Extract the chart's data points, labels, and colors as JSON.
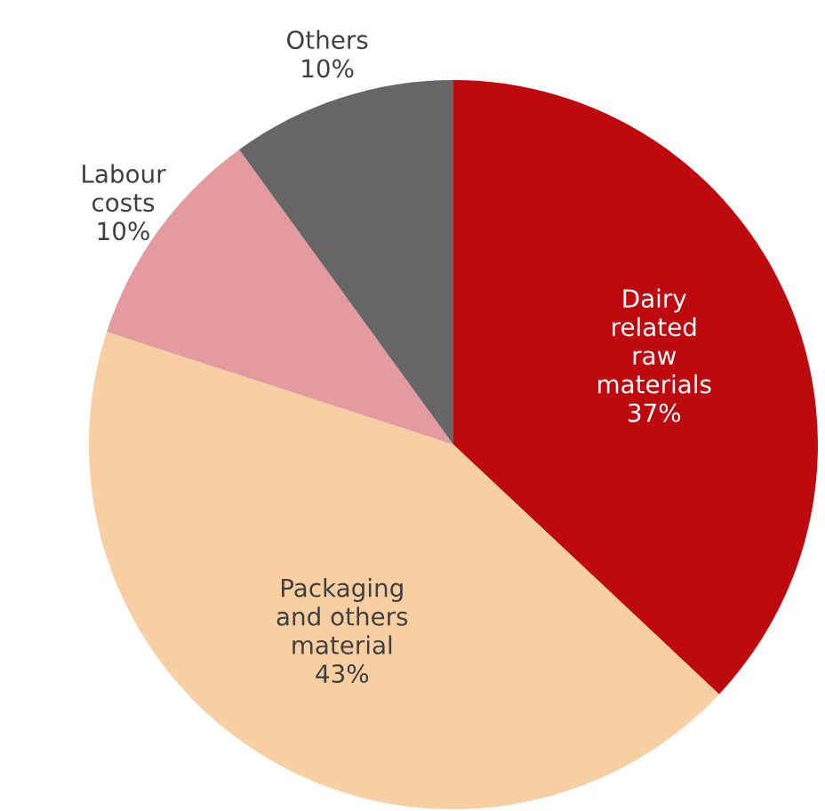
{
  "chart_data": {
    "type": "pie",
    "categories": [
      "Dairy\nrelated\nraw\nmaterials",
      "Packaging\nand others\nmaterial",
      "Labour\ncosts",
      "Others"
    ],
    "values": [
      37,
      43,
      10,
      10
    ],
    "colors": [
      "#be0a0f",
      "#f8cfa3",
      "#e49ba0",
      "#666666"
    ],
    "value_labels": [
      "37%",
      "43%",
      "10%",
      "10%"
    ]
  }
}
